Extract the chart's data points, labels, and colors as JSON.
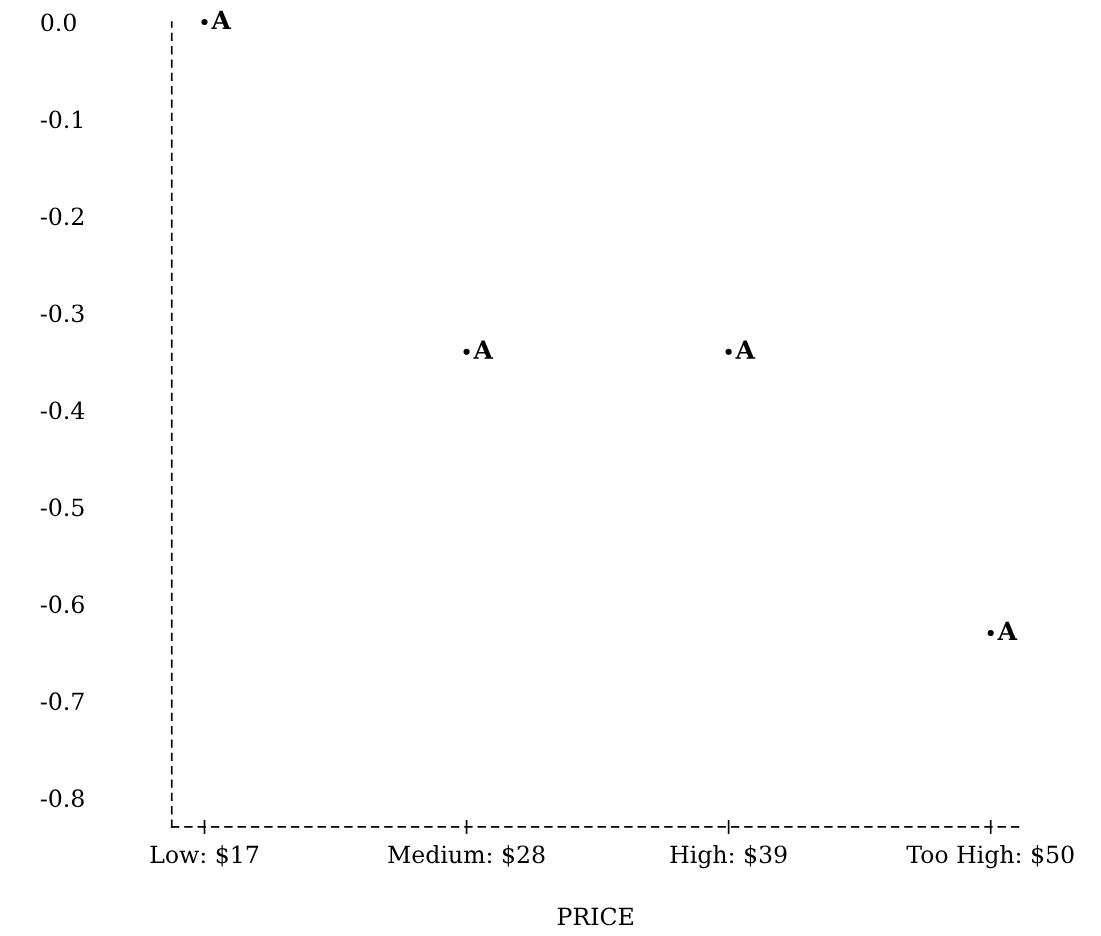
{
  "chart_data": {
    "type": "scatter",
    "xlabel": "PRICE",
    "categories": [
      "Low: $17",
      "Medium: $28",
      "High: $39",
      "Too High: $50"
    ],
    "values": [
      0.0,
      -0.34,
      -0.34,
      -0.63
    ],
    "color": "#000000",
    "marker": "circle",
    "annotations": [
      {
        "text": "A",
        "x": "Low: $17",
        "y": 0.0
      },
      {
        "text": "A",
        "x": "Medium: $28",
        "y": -0.34
      },
      {
        "text": "A",
        "x": "High: $39",
        "y": -0.34
      },
      {
        "text": "A",
        "x": "Too High: $50",
        "y": -0.63
      }
    ],
    "ylim": [
      -0.83,
      0.0
    ],
    "yticks": [
      {
        "value": 0.0,
        "label": "0.0"
      },
      -0.1,
      -0.2,
      -0.3,
      -0.4,
      -0.5,
      -0.6,
      -0.7,
      -0.8
    ],
    "grid": false,
    "legend": false
  }
}
